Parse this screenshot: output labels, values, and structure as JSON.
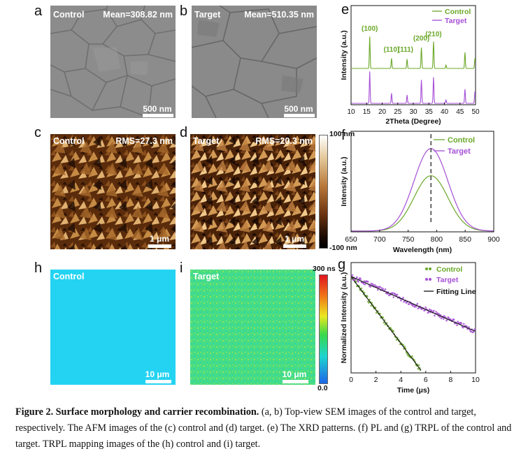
{
  "panels": {
    "a": {
      "letter": "a",
      "label": "Control",
      "stat": "Mean=308.82 nm",
      "scale": "500 nm"
    },
    "b": {
      "letter": "b",
      "label": "Target",
      "stat": "Mean=510.35 nm",
      "scale": "500 nm"
    },
    "c": {
      "letter": "c",
      "label": "Control",
      "stat": "RMS=27.3 nm",
      "scale": "1 μm"
    },
    "d": {
      "letter": "d",
      "label": "Target",
      "stat": "RMS=20.3 nm",
      "scale": "1 μm"
    },
    "h": {
      "letter": "h",
      "label": "Control",
      "scale": "10 μm"
    },
    "i": {
      "letter": "i",
      "label": "Target",
      "scale": "10 μm"
    },
    "e": {
      "letter": "e"
    },
    "f": {
      "letter": "f"
    },
    "g": {
      "letter": "g"
    }
  },
  "afm_colorbar": {
    "top": "100 nm",
    "bottom": "-100 nm"
  },
  "trpl_colorbar": {
    "top": "300 ns",
    "bottom": "0.0"
  },
  "colors": {
    "control": "#6aa828",
    "target": "#a64fd6",
    "sem": "#8e8e8e",
    "afm_dark": "#2a1205",
    "afm_light": "#d9a868",
    "map_control": "#24d3f2",
    "map_target": "#45dc86"
  },
  "chart_data": [
    {
      "type": "line",
      "panel": "e",
      "xlabel": "2Theta (Degree)",
      "ylabel": "Intensity (a.u.)",
      "xlim": [
        10,
        50
      ],
      "xticks": [
        10,
        15,
        20,
        25,
        30,
        35,
        40,
        45,
        50
      ],
      "legend": {
        "placement": "top-right",
        "entries": [
          "Control",
          "Target"
        ]
      },
      "peak_labels": [
        {
          "text": "(100)",
          "x": 16
        },
        {
          "text": "(110)",
          "x": 23
        },
        {
          "text": "(111)",
          "x": 27.5
        },
        {
          "text": "(200)",
          "x": 32.6
        },
        {
          "text": "(210)",
          "x": 36.5
        }
      ],
      "peaks": [
        {
          "x": 16,
          "control": 0.95,
          "target": 0.95
        },
        {
          "x": 23,
          "control": 0.3,
          "target": 0.3
        },
        {
          "x": 28,
          "control": 0.28,
          "target": 0.25
        },
        {
          "x": 32.6,
          "control": 0.62,
          "target": 0.7
        },
        {
          "x": 36.5,
          "control": 0.8,
          "target": 0.78
        },
        {
          "x": 40.5,
          "control": 0.1,
          "target": 0.1
        },
        {
          "x": 46.6,
          "control": 0.48,
          "target": 0.42
        },
        {
          "x": 49.8,
          "control": 0.3,
          "target": 0.35
        }
      ],
      "series": [
        {
          "name": "Control",
          "offset": 1
        },
        {
          "name": "Target",
          "offset": 0
        }
      ]
    },
    {
      "type": "line",
      "panel": "f",
      "xlabel": "Wavelength (nm)",
      "ylabel": "Intensity (a.u.)",
      "xlim": [
        650,
        900
      ],
      "xticks": [
        650,
        700,
        750,
        800,
        850,
        900
      ],
      "legend": {
        "placement": "top-right",
        "entries": [
          "Control",
          "Target"
        ]
      },
      "series": [
        {
          "name": "Control",
          "center": 790,
          "fwhm": 70,
          "peak": 0.55
        },
        {
          "name": "Target",
          "center": 790,
          "fwhm": 70,
          "peak": 0.82
        }
      ],
      "dashed_line_x": 790
    },
    {
      "type": "scatter",
      "panel": "g",
      "xlabel": "Time (μs)",
      "ylabel": "Normalized Intensity (a.u.)",
      "xlim": [
        0,
        10
      ],
      "xticks": [
        0,
        2,
        4,
        6,
        8,
        10
      ],
      "legend": {
        "placement": "top-right",
        "entries": [
          "Control",
          "Target",
          "Fitting Line"
        ]
      },
      "series": [
        {
          "name": "Control",
          "tau": 2.3,
          "t_end": 5.6
        },
        {
          "name": "Target",
          "tau": 7.0,
          "t_end": 10
        }
      ]
    }
  ],
  "caption": {
    "bold": "Figure 2. Surface morphology and carrier recombination.",
    "text": " (a, b) Top-view SEM images of the control and target, respectively. The AFM images of the (c) control and (d) target. (e) The XRD patterns. (f) PL and (g) TRPL of the control and target. TRPL mapping images of the (h) control and (i) target."
  }
}
